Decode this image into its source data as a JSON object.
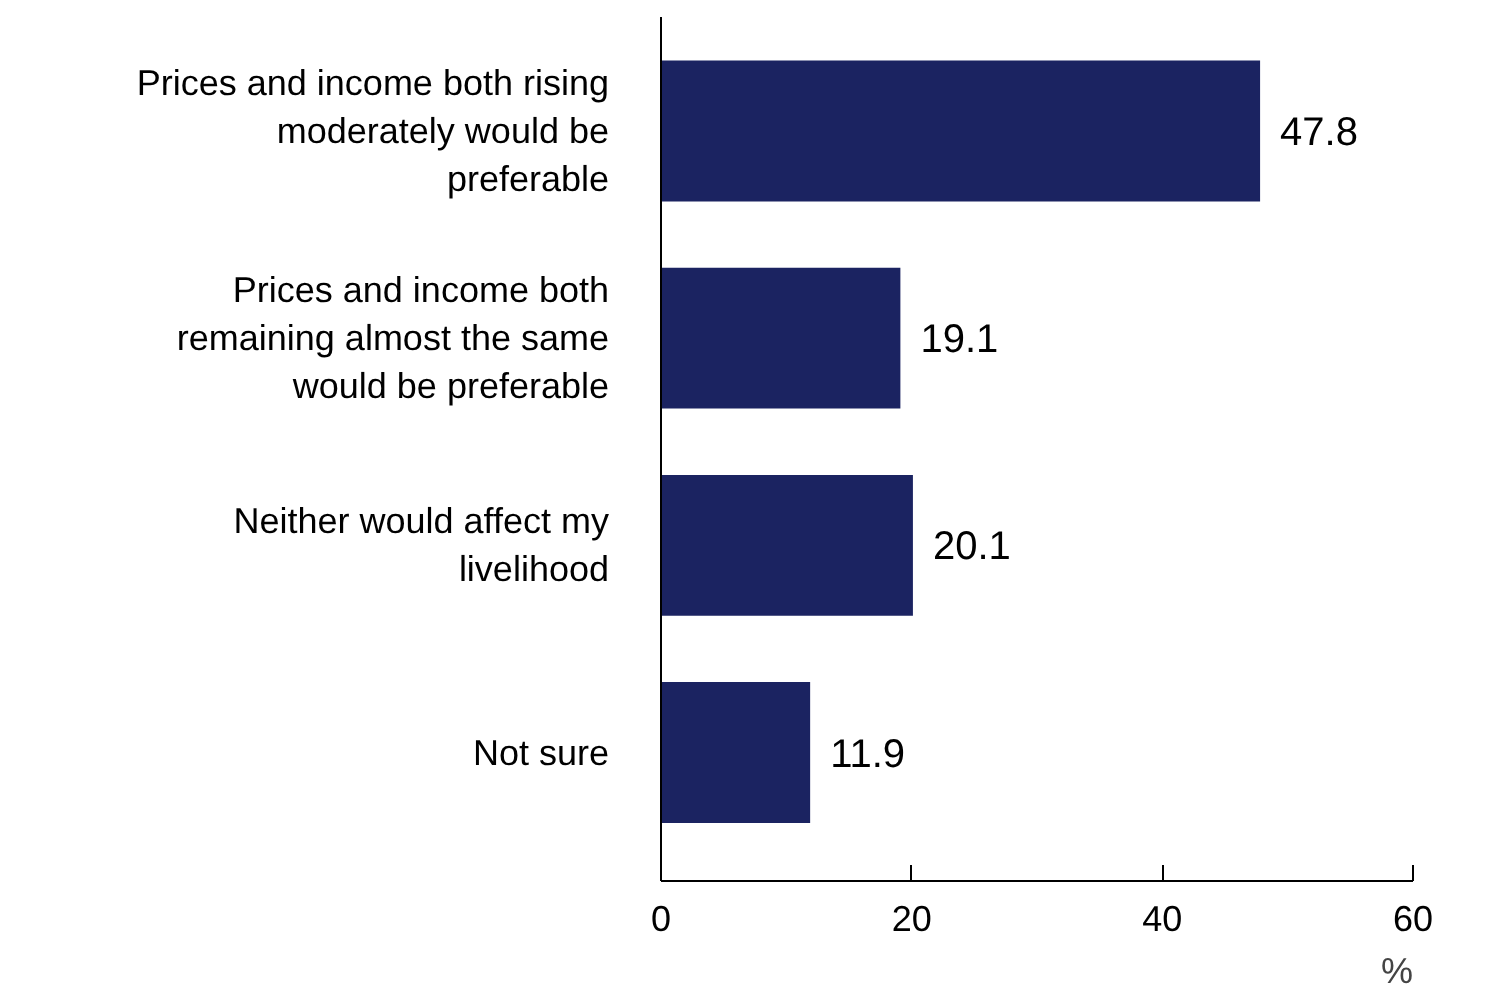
{
  "chart_data": {
    "type": "bar",
    "orientation": "horizontal",
    "categories": [
      "Prices and income both rising moderately would be preferable",
      "Prices and income both remaining almost the same would be preferable",
      "Neither would affect my livelihood",
      "Not sure"
    ],
    "values": [
      47.8,
      19.1,
      20.1,
      11.9
    ],
    "color": "#1b2361",
    "xlim": [
      0,
      60
    ],
    "xticks": [
      0,
      20,
      40,
      60
    ],
    "xlabel": "%",
    "data_labels": true,
    "grid": false
  }
}
